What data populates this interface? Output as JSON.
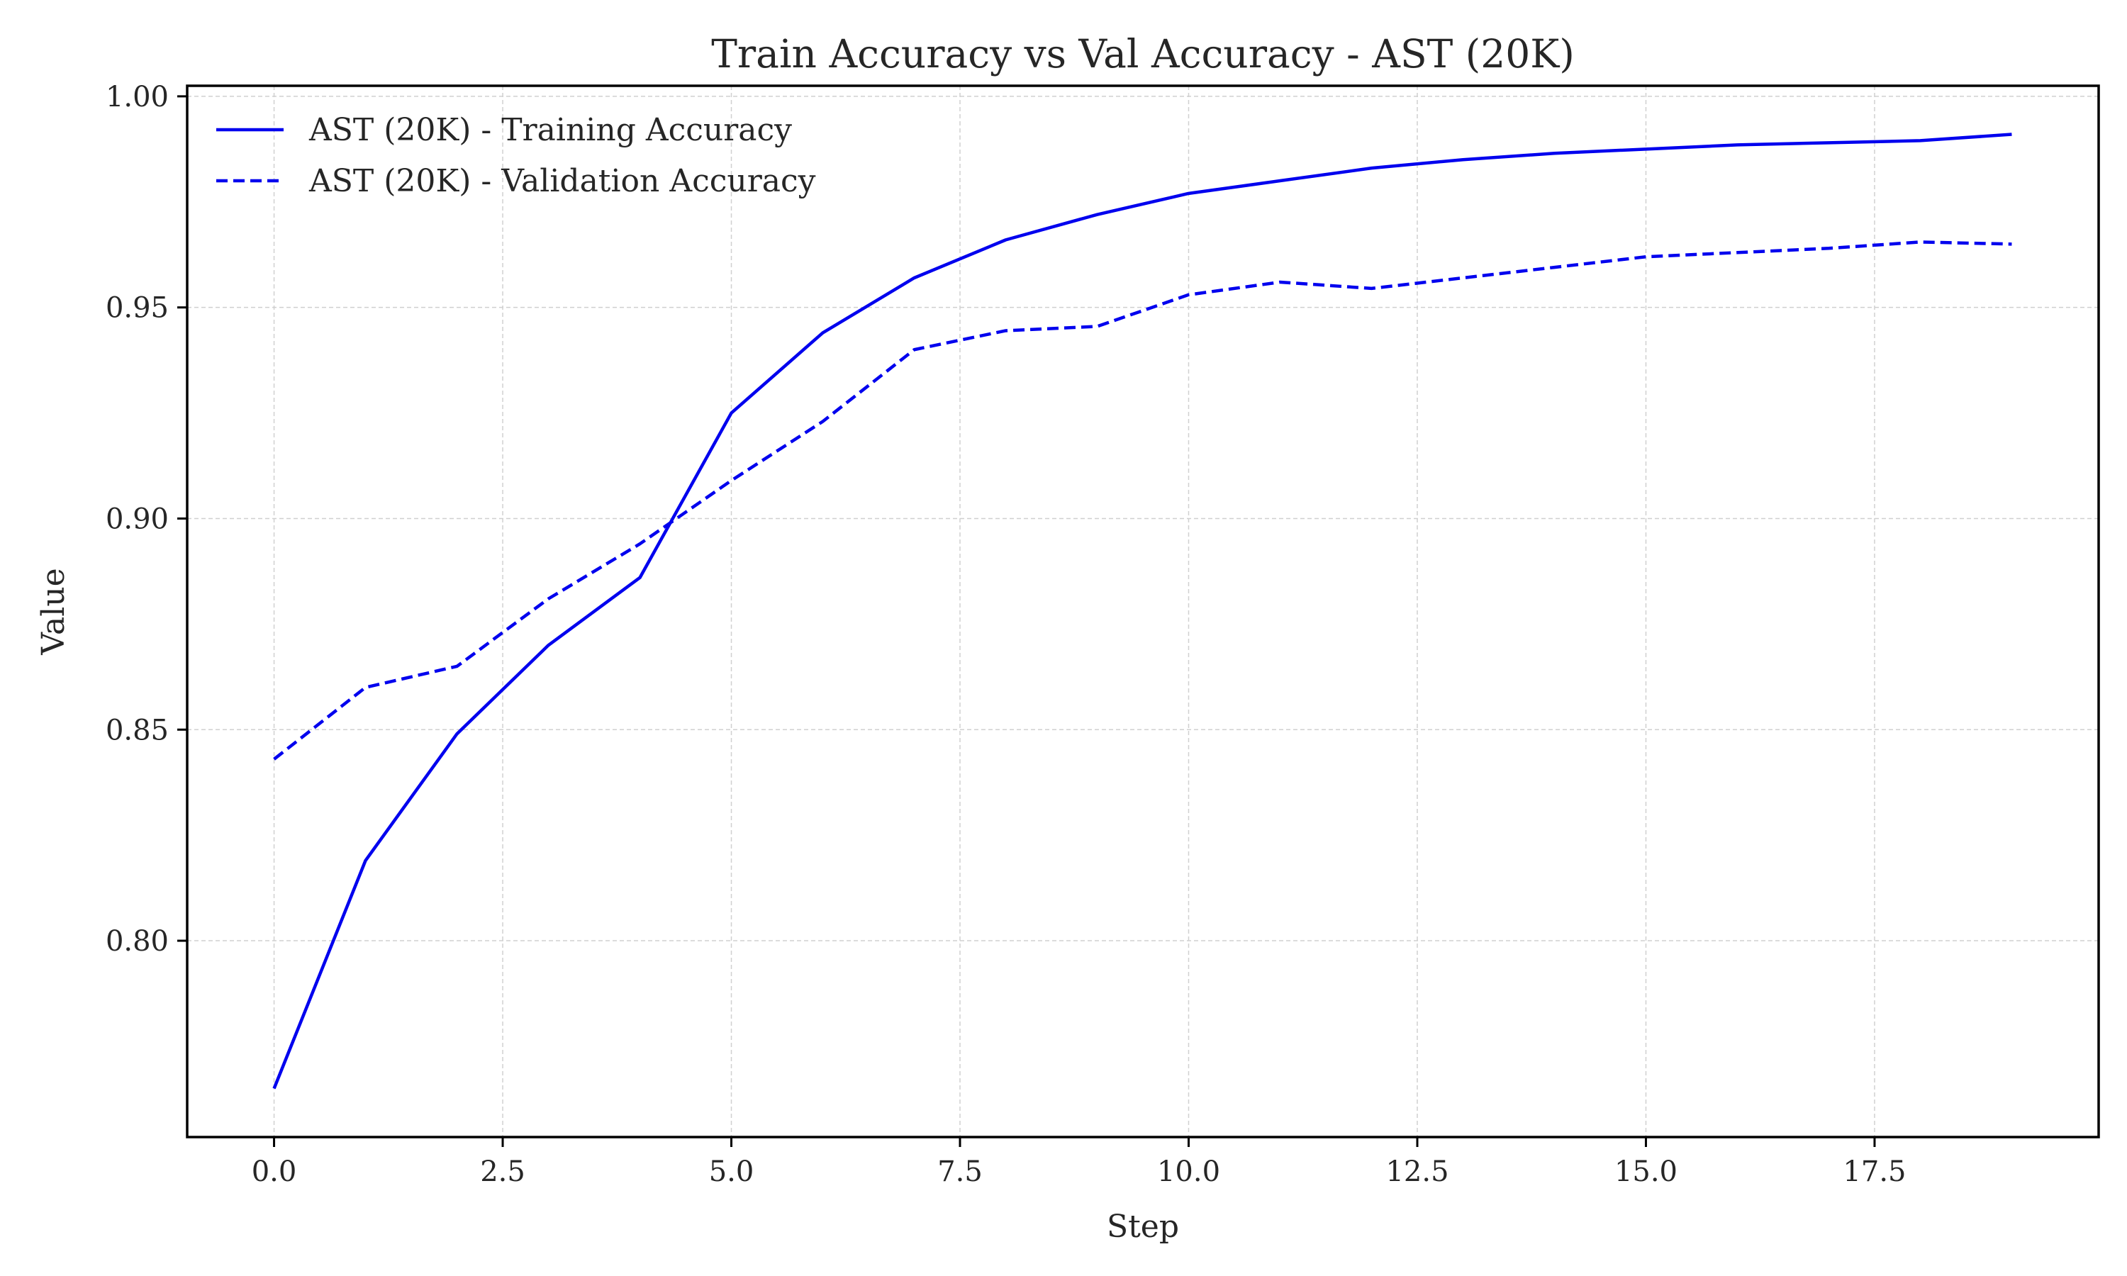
{
  "chart_data": {
    "type": "line",
    "title": "Train Accuracy vs Val Accuracy - AST (20K)",
    "xlabel": "Step",
    "ylabel": "Value",
    "xlim": [
      -0.95,
      19.95
    ],
    "ylim": [
      0.7535,
      1.0025
    ],
    "x_ticks": [
      0.0,
      2.5,
      5.0,
      7.5,
      10.0,
      12.5,
      15.0,
      17.5
    ],
    "x_tick_labels": [
      "0.0",
      "2.5",
      "5.0",
      "7.5",
      "10.0",
      "12.5",
      "15.0",
      "17.5"
    ],
    "y_ticks": [
      0.8,
      0.85,
      0.9,
      0.95,
      1.0
    ],
    "y_tick_labels": [
      "0.80",
      "0.85",
      "0.90",
      "0.95",
      "1.00"
    ],
    "grid": true,
    "legend_position": "top-left",
    "x": [
      0,
      1,
      2,
      3,
      4,
      5,
      6,
      7,
      8,
      9,
      10,
      11,
      12,
      13,
      14,
      15,
      16,
      17,
      18,
      19
    ],
    "series": [
      {
        "name": "AST (20K) - Training Accuracy",
        "color": "#0000ee",
        "linestyle": "solid",
        "values": [
          0.765,
          0.819,
          0.849,
          0.87,
          0.886,
          0.925,
          0.944,
          0.957,
          0.966,
          0.972,
          0.977,
          0.98,
          0.983,
          0.985,
          0.9865,
          0.9875,
          0.9885,
          0.989,
          0.9895,
          0.991
        ]
      },
      {
        "name": "AST (20K) - Validation Accuracy",
        "color": "#0000ee",
        "linestyle": "dashed",
        "values": [
          0.843,
          0.86,
          0.865,
          0.881,
          0.894,
          0.909,
          0.923,
          0.94,
          0.9445,
          0.9455,
          0.953,
          0.956,
          0.9545,
          0.957,
          0.9595,
          0.962,
          0.963,
          0.964,
          0.9655,
          0.965
        ]
      }
    ]
  }
}
